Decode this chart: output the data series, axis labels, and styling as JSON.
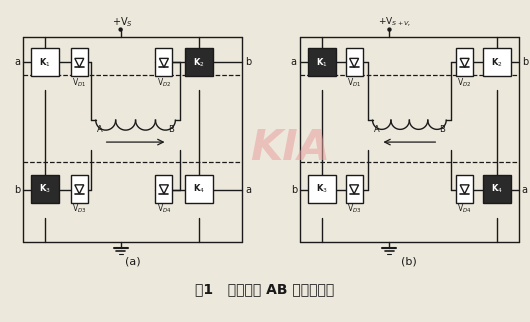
{
  "title": "图1   电机绕组 AB 的电流方向",
  "label_a": "(a)",
  "label_b": "(b)",
  "bg_color": "#ede8dc",
  "line_color": "#1a1a1a",
  "watermark": "KIA",
  "watermark_color": "#e8a0a0",
  "fig_width": 5.3,
  "fig_height": 3.22,
  "dpi": 100
}
